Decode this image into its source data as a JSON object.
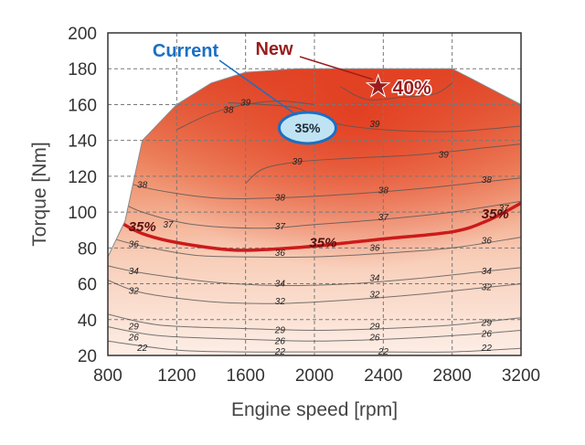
{
  "chart_data": {
    "type": "contour",
    "xlabel": "Engine speed [rpm]",
    "ylabel": "Torque [Nm]",
    "xlim": [
      800,
      3200
    ],
    "ylim": [
      20,
      200
    ],
    "xticks": [
      800,
      1200,
      1600,
      2000,
      2400,
      2800,
      3200
    ],
    "yticks": [
      20,
      40,
      60,
      80,
      100,
      120,
      140,
      160,
      180,
      200
    ],
    "grid": "dashed",
    "max_torque_curve": [
      [
        800,
        75
      ],
      [
        900,
        95
      ],
      [
        1000,
        140
      ],
      [
        1200,
        160
      ],
      [
        1400,
        172
      ],
      [
        1600,
        178
      ],
      [
        1900,
        180
      ],
      [
        2800,
        180
      ],
      [
        3200,
        160
      ]
    ],
    "contours": [
      {
        "label": "22",
        "points": [
          [
            800,
            28
          ],
          [
            1200,
            23
          ],
          [
            1600,
            22
          ],
          [
            2000,
            22
          ],
          [
            2400,
            22
          ],
          [
            2800,
            22
          ],
          [
            3200,
            24
          ]
        ],
        "labels": [
          [
            1000,
            24
          ],
          [
            1800,
            22
          ],
          [
            2400,
            22
          ],
          [
            3000,
            24
          ]
        ]
      },
      {
        "label": "26",
        "points": [
          [
            800,
            36
          ],
          [
            1100,
            31
          ],
          [
            1600,
            29
          ],
          [
            2000,
            28
          ],
          [
            2400,
            29
          ],
          [
            2800,
            31
          ],
          [
            3200,
            34
          ]
        ],
        "labels": [
          [
            950,
            30
          ],
          [
            1800,
            28
          ],
          [
            2350,
            30
          ],
          [
            3000,
            32
          ]
        ]
      },
      {
        "label": "29",
        "points": [
          [
            800,
            43
          ],
          [
            1100,
            37
          ],
          [
            1600,
            35
          ],
          [
            2000,
            34
          ],
          [
            2400,
            35
          ],
          [
            2800,
            37
          ],
          [
            3200,
            41
          ]
        ],
        "labels": [
          [
            950,
            36
          ],
          [
            1800,
            34
          ],
          [
            2350,
            36
          ],
          [
            3000,
            38
          ]
        ]
      },
      {
        "label": "32",
        "points": [
          [
            800,
            62
          ],
          [
            1000,
            55
          ],
          [
            1400,
            50
          ],
          [
            1800,
            49
          ],
          [
            2200,
            51
          ],
          [
            2600,
            54
          ],
          [
            3000,
            58
          ],
          [
            3200,
            60
          ]
        ],
        "labels": [
          [
            950,
            56
          ],
          [
            1800,
            50
          ],
          [
            2350,
            54
          ],
          [
            3000,
            58
          ]
        ]
      },
      {
        "label": "34",
        "points": [
          [
            800,
            70
          ],
          [
            1000,
            66
          ],
          [
            1400,
            61
          ],
          [
            1800,
            59
          ],
          [
            2200,
            60
          ],
          [
            2600,
            63
          ],
          [
            3000,
            67
          ],
          [
            3200,
            69
          ]
        ],
        "labels": [
          [
            950,
            67
          ],
          [
            1800,
            60
          ],
          [
            2350,
            63
          ],
          [
            3000,
            67
          ]
        ]
      },
      {
        "label": "35%",
        "points": [
          [
            860,
            95
          ],
          [
            1000,
            88
          ],
          [
            1200,
            83
          ],
          [
            1500,
            79
          ],
          [
            1700,
            79
          ],
          [
            2000,
            81
          ],
          [
            2400,
            85
          ],
          [
            2800,
            89
          ],
          [
            3000,
            95
          ],
          [
            3200,
            105
          ]
        ],
        "labels": [
          [
            1000,
            92
          ],
          [
            2050,
            83
          ],
          [
            3050,
            99
          ]
        ]
      },
      {
        "label": "36",
        "points": [
          [
            800,
            86
          ],
          [
            1000,
            81
          ],
          [
            1300,
            76
          ],
          [
            1600,
            75
          ],
          [
            2000,
            75
          ],
          [
            2400,
            77
          ],
          [
            2800,
            80
          ],
          [
            3200,
            86
          ]
        ],
        "labels": [
          [
            950,
            82
          ],
          [
            1800,
            77
          ],
          [
            2350,
            80
          ],
          [
            3000,
            84
          ]
        ]
      },
      {
        "label": "37",
        "points": [
          [
            850,
            107
          ],
          [
            1000,
            100
          ],
          [
            1300,
            93
          ],
          [
            1700,
            91
          ],
          [
            2000,
            93
          ],
          [
            2400,
            96
          ],
          [
            2800,
            100
          ],
          [
            3200,
            106
          ]
        ],
        "labels": [
          [
            1150,
            93
          ],
          [
            1800,
            92
          ],
          [
            2400,
            97
          ],
          [
            3100,
            102
          ]
        ]
      },
      {
        "label": "38",
        "points": [
          [
            850,
            120
          ],
          [
            1000,
            114
          ],
          [
            1400,
            108
          ],
          [
            1800,
            108
          ],
          [
            2200,
            110
          ],
          [
            2600,
            113
          ],
          [
            3000,
            117
          ],
          [
            3200,
            119
          ]
        ],
        "labels": [
          [
            1000,
            115
          ],
          [
            1800,
            108
          ],
          [
            2400,
            112
          ],
          [
            3000,
            118
          ]
        ]
      },
      {
        "label": "39",
        "points": [
          [
            1600,
            116
          ],
          [
            1700,
            124
          ],
          [
            1900,
            128
          ],
          [
            2200,
            130
          ],
          [
            2600,
            132
          ],
          [
            3000,
            136
          ],
          [
            3200,
            138
          ]
        ],
        "labels": [
          [
            1900,
            128
          ],
          [
            2750,
            132
          ]
        ]
      },
      {
        "label": "38",
        "points": [
          [
            1200,
            146
          ],
          [
            1400,
            155
          ],
          [
            1600,
            160
          ],
          [
            1800,
            162
          ],
          [
            2000,
            160
          ]
        ],
        "labels": [
          [
            1500,
            157
          ]
        ]
      },
      {
        "label": "39",
        "points": [
          [
            1500,
            161
          ],
          [
            1700,
            160
          ],
          [
            1900,
            158
          ],
          [
            2100,
            150
          ],
          [
            2400,
            146
          ],
          [
            2800,
            145
          ],
          [
            3200,
            148
          ]
        ],
        "labels": [
          [
            1600,
            161
          ],
          [
            2350,
            149
          ]
        ]
      },
      {
        "label": "40",
        "points": [
          [
            2150,
            170
          ],
          [
            2300,
            163
          ],
          [
            2500,
            164
          ],
          [
            2700,
            166
          ],
          [
            2800,
            172
          ]
        ],
        "labels": []
      }
    ],
    "current": {
      "label": "Current",
      "value_label": "35%",
      "rpm": 1960,
      "torque": 147
    },
    "new": {
      "label": "New",
      "value_label": "40%",
      "rpm": 2370,
      "torque": 170
    },
    "colors": {
      "frame": "#333333",
      "grid": "#777777",
      "contour": "#555555",
      "highlight_35": "#cc1a1a",
      "current_color": "#1a6fc4",
      "current_fill": "#bfe3f2",
      "new_color": "#9a1d1d",
      "map_hot": "#e04a2a",
      "map_cool": "#fde7dc"
    }
  }
}
